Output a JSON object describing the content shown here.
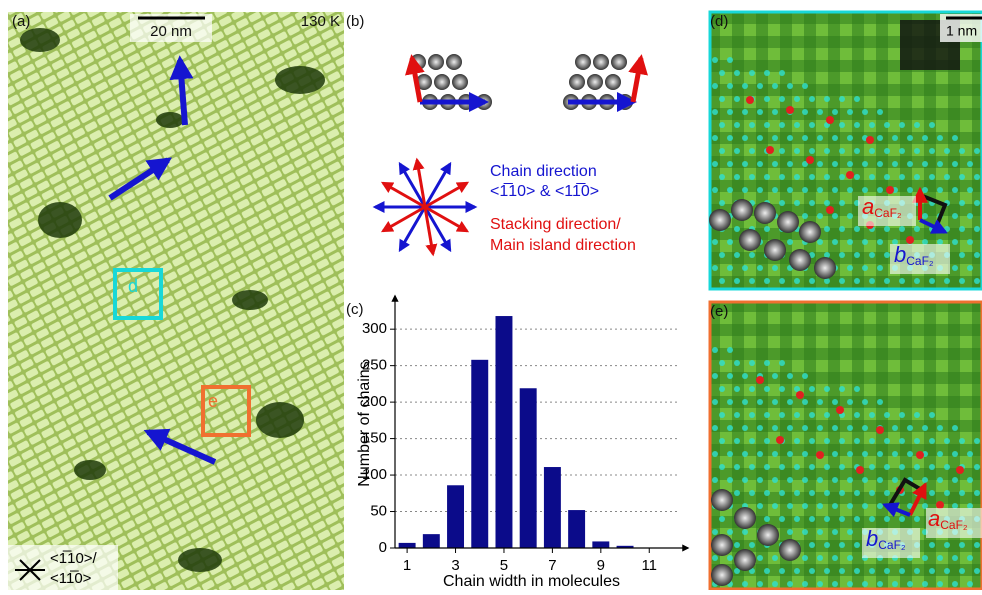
{
  "panel_a": {
    "label": "(a)",
    "scale_bar": "20 nm",
    "temperature": "130 K",
    "box_d": "d",
    "box_e": "e",
    "direction_1": "<1̅10>/",
    "direction_2": "<11̅0>"
  },
  "panel_b": {
    "label": "(b)",
    "legend_blue_1": "Chain direction",
    "legend_blue_2": "<1̅10> & <11̅0>",
    "legend_red_1": "Stacking direction/",
    "legend_red_2": "Main island direction"
  },
  "panel_d": {
    "label": "(d)",
    "scale_bar": "1 nm",
    "a_symbol": "a",
    "a_sub": "CaF₂",
    "b_symbol": "b",
    "b_sub": "CaF₂"
  },
  "panel_e": {
    "label": "(e)",
    "a_symbol": "a",
    "a_sub": "CaF₂",
    "b_symbol": "b",
    "b_sub": "CaF₂"
  },
  "chart_data": {
    "type": "bar",
    "label": "(c)",
    "x": [
      1,
      2,
      3,
      4,
      5,
      6,
      7,
      8,
      9,
      10
    ],
    "values": [
      7,
      19,
      86,
      258,
      318,
      219,
      111,
      52,
      9,
      3
    ],
    "color": "#0b0b8a",
    "xlim": [
      0.5,
      12.6
    ],
    "ylim": [
      0,
      340
    ],
    "xticks": [
      1,
      3,
      5,
      7,
      9,
      11
    ],
    "yticks": [
      0,
      50,
      100,
      150,
      200,
      250,
      300
    ],
    "grid": true,
    "xlabel": "Chain width in molecules",
    "ylabel": "Number of chains"
  }
}
